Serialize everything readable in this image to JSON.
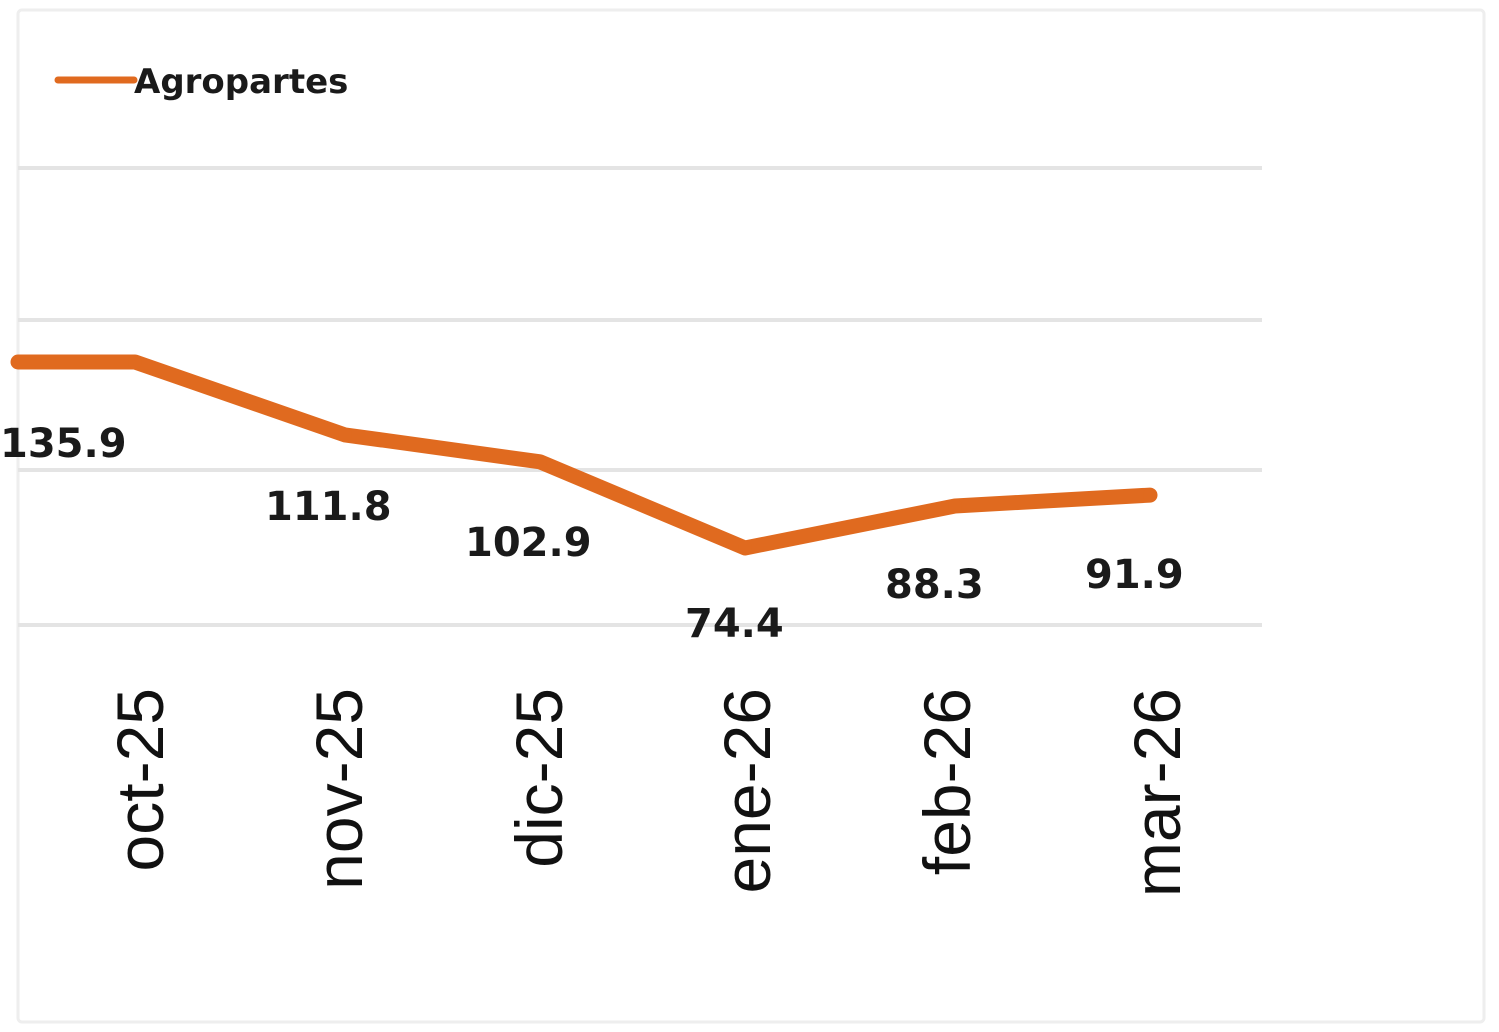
{
  "chart_data": {
    "type": "line",
    "categories": [
      "oct-25",
      "nov-25",
      "dic-25",
      "ene-26",
      "feb-26",
      "mar-26"
    ],
    "series": [
      {
        "name": "Agropartes",
        "values": [
          135.9,
          111.8,
          102.9,
          74.4,
          88.3,
          91.9
        ],
        "data_labels": [
          "135.9",
          "111.8",
          "102.9",
          "74.4",
          "88.3",
          "91.9"
        ],
        "color": "#e06a1f"
      }
    ],
    "title": "",
    "xlabel": "",
    "ylabel": "",
    "grid": true,
    "legend": "top-left",
    "x_tick_rotation": -90,
    "colors": {
      "background": "#ffffff",
      "gridline": "#e4e4e4",
      "frame": "#eeeeee"
    }
  }
}
